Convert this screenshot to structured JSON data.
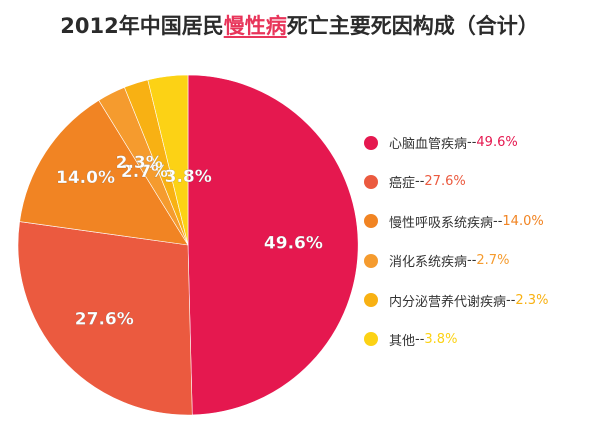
{
  "title": {
    "prefix": "2012年中国居民",
    "highlight": "慢性病",
    "suffix": "死亡主要死因构成（合计）"
  },
  "colors": {
    "title_highlight": "#e8355a",
    "slice_label": "#ffffff"
  },
  "chart_data": {
    "type": "pie",
    "start_angle_deg": 0,
    "direction": "clockwise",
    "slices": [
      {
        "label": "心脑血管疾病",
        "value": 49.6,
        "display": "49.6%",
        "legend_value": "49.6%",
        "color": "#e5184f"
      },
      {
        "label": "癌症",
        "value": 27.6,
        "display": "27.6%",
        "legend_value": "27.6%",
        "color": "#eb5a3f"
      },
      {
        "label": "慢性呼吸系统疾病",
        "value": 14.0,
        "display": "14.0%",
        "legend_value": "14.0%",
        "color": "#f18423"
      },
      {
        "label": "消化系统疾病",
        "value": 2.7,
        "display": "2.7%",
        "legend_value": "2.7%",
        "color": "#f59b2e"
      },
      {
        "label": "内分泌营养代谢疾病",
        "value": 2.3,
        "display": "2.3%",
        "legend_value": "2.3%",
        "color": "#f8b113"
      },
      {
        "label": "其他",
        "value": 3.8,
        "display": "3.8%",
        "legend_value": "3.8%",
        "color": "#fcd215"
      }
    ],
    "legend_separator": "--",
    "legend_position": "right"
  }
}
